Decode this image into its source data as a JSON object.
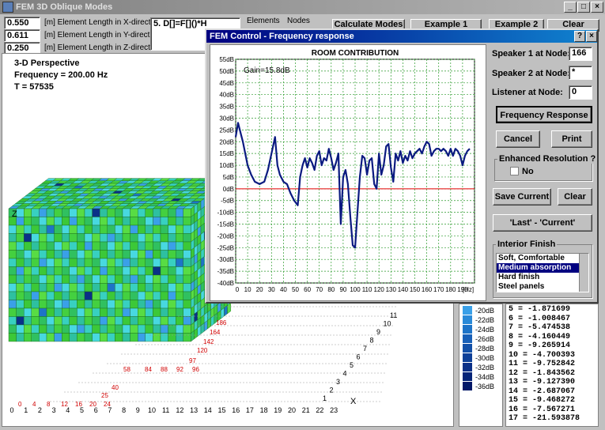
{
  "window": {
    "title": "FEM 3D Oblique Modes"
  },
  "inputs": [
    {
      "value": "0.550",
      "label": "[m] Element Length in X-direction"
    },
    {
      "value": "0.611",
      "label": "[m] Element Length in Y-direction"
    },
    {
      "value": "0.250",
      "label": "[m] Element Length in Z-direction"
    }
  ],
  "formula": "5. D[]=F[]()*H",
  "headers": {
    "elements": "Elements",
    "nodes": "Nodes"
  },
  "buttons": {
    "calc_modes": "Calculate Modes",
    "example1": "Example 1",
    "example2": "Example 2",
    "clear": "Clear"
  },
  "view": {
    "mode": "3-D Perspective",
    "frequency": "Frequency = 200.00 Hz",
    "t": "T = 57535",
    "axis_z": "Z",
    "axis_x": "X",
    "bottom_ticks": [
      "0",
      "1",
      "2",
      "3",
      "4",
      "5",
      "6",
      "7",
      "8",
      "9",
      "10",
      "11",
      "12",
      "13",
      "14",
      "15",
      "16",
      "17",
      "18",
      "19",
      "20",
      "21",
      "22",
      "23"
    ],
    "red_ticks": [
      "0",
      "4",
      "8",
      "12",
      "16",
      "20",
      "24"
    ],
    "depth_ticks": [
      "1",
      "2",
      "3",
      "4",
      "5",
      "6",
      "7",
      "8",
      "9",
      "10",
      "11"
    ],
    "diag_red": [
      "25",
      "40",
      "58",
      "84",
      "88",
      "92",
      "96",
      "97",
      "120",
      "142",
      "164",
      "186"
    ]
  },
  "legend": {
    "items": [
      "-20dB",
      "-22dB",
      "-24dB",
      "-26dB",
      "-28dB",
      "-30dB",
      "-32dB",
      "-34dB",
      "-36dB"
    ],
    "colors": [
      "#3aa0e8",
      "#2a8ad8",
      "#1e74c8",
      "#1860b8",
      "#1250a8",
      "#0e4098",
      "#0a3088",
      "#062478",
      "#021868"
    ]
  },
  "modes_list": [
    "5 = -1.871699",
    "6 = -1.008467",
    "7 = -5.474538",
    "8 = -4.160449",
    "9 = -9.265914",
    "10 = -4.700393",
    "11 = -9.752842",
    "12 = -1.843562",
    "13 = -9.127390",
    "14 = -2.687067",
    "15 = -9.468272",
    "16 = -7.567271",
    "17 = -21.593878"
  ],
  "dialog": {
    "title": "FEM Control - Frequency response",
    "speaker1_label": "Speaker 1 at Node:",
    "speaker1_value": "166",
    "speaker2_label": "Speaker 2 at Node:",
    "speaker2_value": "*",
    "listener_label": "Listener at Node:",
    "listener_value": "0",
    "freq_button": "Frequency Response",
    "cancel": "Cancel",
    "print": "Print",
    "enhanced_label": "Enhanced Resolution ?",
    "enhanced_opt": "No",
    "save_current": "Save Current",
    "clear": "Clear",
    "last_current": "'Last' - 'Current'",
    "interior_label": "Interior Finish",
    "finishes": [
      "Soft, Comfortable",
      "Medium absorption",
      "Hard finish",
      "Steel panels"
    ],
    "finish_selected": "Medium absorption"
  },
  "chart_data": {
    "type": "line",
    "title": "ROOM CONTRIBUTION",
    "annotation": "Gain=15.8dB",
    "xlabel": "[Hz]",
    "xlim": [
      0,
      200
    ],
    "ylim": [
      -40,
      55
    ],
    "x_ticks": [
      "0",
      "10",
      "20",
      "30",
      "40",
      "50",
      "60",
      "70",
      "80",
      "90",
      "100",
      "110",
      "120",
      "130",
      "140",
      "150",
      "160",
      "170",
      "180",
      "190"
    ],
    "y_ticks": [
      "55dB",
      "50dB",
      "45dB",
      "40dB",
      "35dB",
      "30dB",
      "25dB",
      "20dB",
      "15dB",
      "10dB",
      "5dB",
      "0dB",
      "-5dB",
      "-10dB",
      "-15dB",
      "-20dB",
      "-25dB",
      "-30dB",
      "-35dB",
      "-40dB"
    ],
    "grid": true,
    "reference_line": 0,
    "series": [
      {
        "x": [
          0,
          2,
          4,
          6,
          8,
          10,
          13,
          16,
          20,
          24,
          27,
          30,
          33,
          35,
          37,
          40,
          43,
          46,
          49,
          52,
          54,
          56,
          58,
          60,
          62,
          64,
          66,
          68,
          70,
          72,
          74,
          76,
          78,
          80,
          82,
          84,
          86,
          88,
          90,
          92,
          94,
          96,
          98,
          100,
          102,
          104,
          106,
          108,
          110,
          112,
          114,
          116,
          118,
          120,
          122,
          124,
          126,
          128,
          130,
          132,
          134,
          136,
          138,
          140,
          142,
          144,
          146,
          148,
          150,
          152,
          154,
          156,
          158,
          160,
          162,
          164,
          166,
          168,
          170,
          172,
          174,
          176,
          178,
          180,
          182,
          184,
          186,
          188,
          190,
          192,
          194,
          196
        ],
        "y": [
          22,
          28,
          24,
          20,
          15,
          10,
          6,
          3,
          2,
          3,
          8,
          15,
          22,
          10,
          6,
          3,
          2,
          -2,
          -5,
          -7,
          5,
          10,
          13,
          9,
          13,
          11,
          8,
          14,
          16,
          10,
          13,
          12,
          17,
          13,
          8,
          11,
          15,
          -15,
          5,
          8,
          2,
          -12,
          -24,
          -25,
          -10,
          5,
          14,
          13,
          6,
          12,
          13,
          2,
          0,
          15,
          6,
          10,
          18,
          19,
          9,
          3,
          15,
          12,
          16,
          11,
          14,
          12,
          16,
          13,
          15,
          16,
          17,
          15,
          18,
          20,
          19,
          14,
          16,
          17,
          17,
          16,
          17,
          16,
          14,
          17,
          14,
          17,
          16,
          14,
          10,
          14,
          16,
          17
        ]
      }
    ]
  }
}
